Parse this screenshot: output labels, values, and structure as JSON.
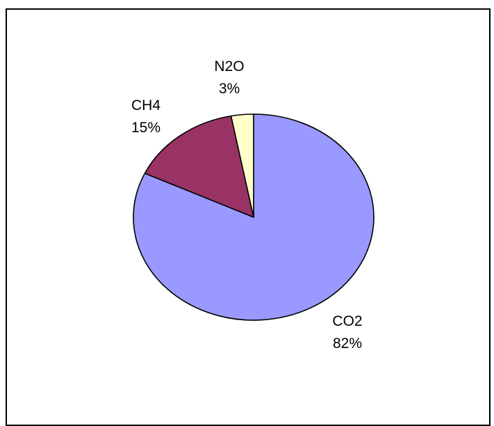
{
  "chart_data": {
    "type": "pie",
    "categories": [
      "CO2",
      "CH4",
      "N2O"
    ],
    "values": [
      82,
      15,
      3
    ],
    "percent_labels": [
      "82%",
      "15%",
      "3%"
    ],
    "colors": {
      "CO2": "#9999ff",
      "CH4": "#993366",
      "N2O": "#ffffcc"
    },
    "legend": "none",
    "labels_position": "outside"
  }
}
